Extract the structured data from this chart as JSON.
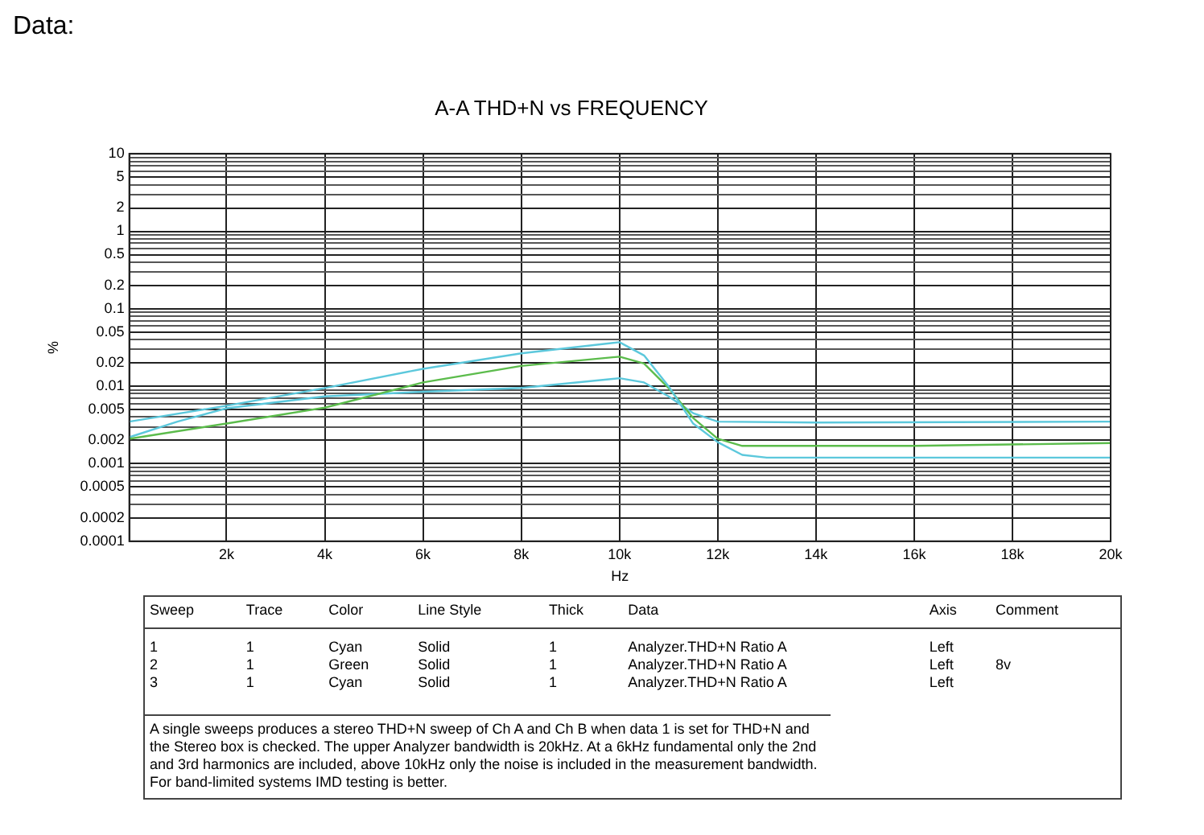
{
  "chart_data": {
    "type": "line",
    "title": "A-A THD+N vs FREQUENCY",
    "xlabel": "Hz",
    "ylabel": "%",
    "log": "y",
    "grid": true,
    "legend": false,
    "marker": "none",
    "line_style": "solid",
    "xlim": [
      20,
      20000
    ],
    "xticks": [
      {
        "value": 2000,
        "label": "2k"
      },
      {
        "value": 4000,
        "label": "4k"
      },
      {
        "value": 6000,
        "label": "6k"
      },
      {
        "value": 8000,
        "label": "8k"
      },
      {
        "value": 10000,
        "label": "10k"
      },
      {
        "value": 12000,
        "label": "12k"
      },
      {
        "value": 14000,
        "label": "14k"
      },
      {
        "value": 16000,
        "label": "16k"
      },
      {
        "value": 18000,
        "label": "18k"
      },
      {
        "value": 20000,
        "label": "20k"
      }
    ],
    "ylim": [
      0.0001,
      10
    ],
    "yticks": [
      0.0001,
      0.0002,
      {
        "value": 0.0003,
        "label": null
      },
      {
        "value": 0.0004,
        "label": null
      },
      0.0005,
      {
        "value": 0.0006,
        "label": null
      },
      {
        "value": 0.0007,
        "label": null
      },
      {
        "value": 0.0008,
        "label": null
      },
      {
        "value": 0.0009,
        "label": null
      },
      0.001,
      0.002,
      {
        "value": 0.003,
        "label": null
      },
      {
        "value": 0.004,
        "label": null
      },
      0.005,
      {
        "value": 0.006,
        "label": null
      },
      {
        "value": 0.007,
        "label": null
      },
      {
        "value": 0.008,
        "label": null
      },
      {
        "value": 0.009,
        "label": null
      },
      0.01,
      0.02,
      {
        "value": 0.03,
        "label": null
      },
      {
        "value": 0.04,
        "label": null
      },
      0.05,
      {
        "value": 0.06,
        "label": null
      },
      {
        "value": 0.07,
        "label": null
      },
      {
        "value": 0.08,
        "label": null
      },
      {
        "value": 0.09,
        "label": null
      },
      0.1,
      0.2,
      {
        "value": 0.3,
        "label": null
      },
      {
        "value": 0.4,
        "label": null
      },
      0.5,
      {
        "value": 0.6,
        "label": null
      },
      {
        "value": 0.7,
        "label": null
      },
      {
        "value": 0.8,
        "label": null
      },
      {
        "value": 0.9,
        "label": null
      },
      1,
      2,
      {
        "value": 3,
        "label": null
      },
      {
        "value": 4,
        "label": null
      },
      5,
      {
        "value": 6,
        "label": null
      },
      {
        "value": 7,
        "label": null
      },
      {
        "value": 8,
        "label": null
      },
      {
        "value": 9,
        "label": null
      },
      10
    ],
    "series": [
      {
        "color": "#5cc8dc",
        "x": [
          20,
          2000,
          4000,
          6000,
          8000,
          10000,
          10500,
          11000,
          11500,
          12000,
          12500,
          13000,
          14000,
          16000,
          18000,
          20000
        ],
        "values": [
          0.0035,
          0.0056,
          0.0095,
          0.0168,
          0.0266,
          0.037,
          0.025,
          0.01,
          0.0033,
          0.0019,
          0.0013,
          0.0012,
          0.0012,
          0.0012,
          0.0012,
          0.0012
        ]
      },
      {
        "color": "#5cbc4c",
        "x": [
          20,
          2000,
          4000,
          6000,
          8000,
          10000,
          10500,
          11000,
          11500,
          12000,
          12500,
          13000,
          16000,
          20000
        ],
        "values": [
          0.0021,
          0.0033,
          0.0053,
          0.0112,
          0.0183,
          0.0241,
          0.0197,
          0.0095,
          0.0039,
          0.0021,
          0.0017,
          0.0017,
          0.0017,
          0.00185
        ]
      },
      {
        "color": "#5cc8dc",
        "x": [
          20,
          1000,
          2000,
          4000,
          6000,
          8000,
          10000,
          10500,
          11000,
          11500,
          12000,
          14000,
          20000
        ],
        "values": [
          0.0022,
          0.0035,
          0.0052,
          0.0074,
          0.0085,
          0.0095,
          0.0127,
          0.0112,
          0.0074,
          0.0045,
          0.0035,
          0.0034,
          0.0035
        ]
      }
    ],
    "annotations": [
      "Data:",
      "Sweep\tTrace\tColor\tLine Style\tThick\tData\tAxis\tComment",
      "1\t1\tCyan\tSolid\t1\tAnalyzer.THD+N Ratio A\tLeft",
      "2\t1\tGreen\tSolid\t1\tAnalyzer.THD+N Ratio A\tLeft\t8v",
      "3\t1\tCyan\tSolid\t1\tAnalyzer.THD+N Ratio A\tLeft",
      "A single sweeps produces a stereo THD+N sweep of Ch A and Ch B when data 1 is set for THD+N and the Stereo box is checked.  The upper Analyzer bandwidth is 20kHz.  At a 6kHz fundamental only the 2nd and 3rd harmonics are included, above 10kHz only the noise is included in the measurement bandwidth.  For band-limited systems IMD testing is better."
    ]
  }
}
